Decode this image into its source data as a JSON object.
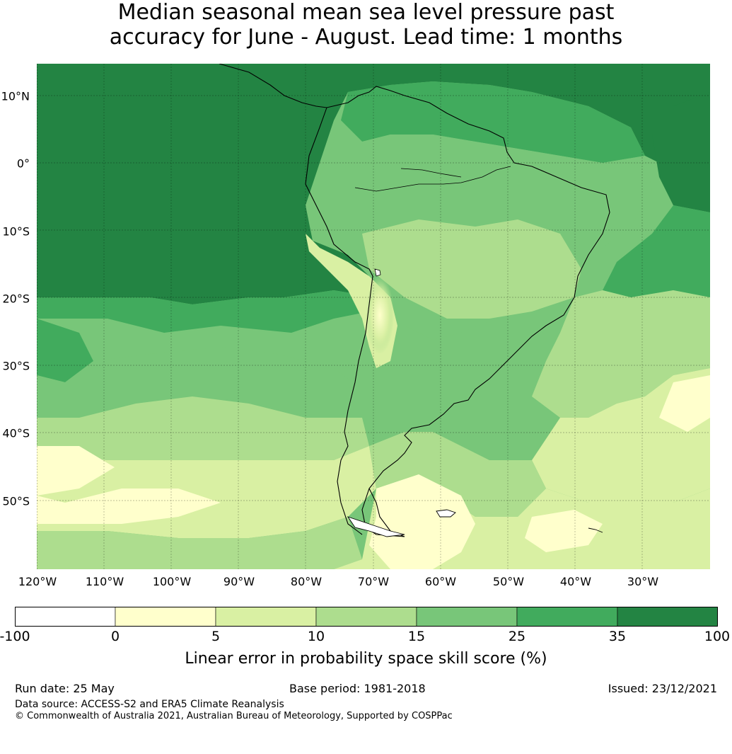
{
  "title": {
    "line1": "Median seasonal mean sea level pressure past",
    "line2": "accuracy for June - August. Lead time: 1 months"
  },
  "map": {
    "lat_labels": [
      "10°N",
      "0°",
      "10°S",
      "20°S",
      "30°S",
      "40°S",
      "50°S"
    ],
    "lon_labels": [
      "120°W",
      "110°W",
      "100°W",
      "90°W",
      "80°W",
      "70°W",
      "60°W",
      "50°W",
      "40°W",
      "30°W"
    ],
    "region": "South America and surrounding oceans",
    "lat_range": [
      -60,
      15
    ],
    "lon_range": [
      -120,
      -20
    ],
    "grid": true
  },
  "colorbar": {
    "ticks": [
      "-100",
      "0",
      "5",
      "10",
      "15",
      "25",
      "35",
      "100"
    ],
    "colors": [
      "#ffffff",
      "#ffffcc",
      "#d9f0a3",
      "#addd8e",
      "#78c679",
      "#41ab5d",
      "#238443"
    ],
    "label": "Linear error in probability space skill score (%)"
  },
  "footer": {
    "run_date": "Run date: 25 May",
    "base_period": "Base period: 1981-2018",
    "issued": "Issued: 23/12/2021",
    "data_source": "Data source: ACCESS-S2 and ERA5 Climate Reanalysis",
    "copyright": "© Commonwealth of Australia 2021, Australian Bureau of Meteorology, Supported by COSPPac"
  }
}
